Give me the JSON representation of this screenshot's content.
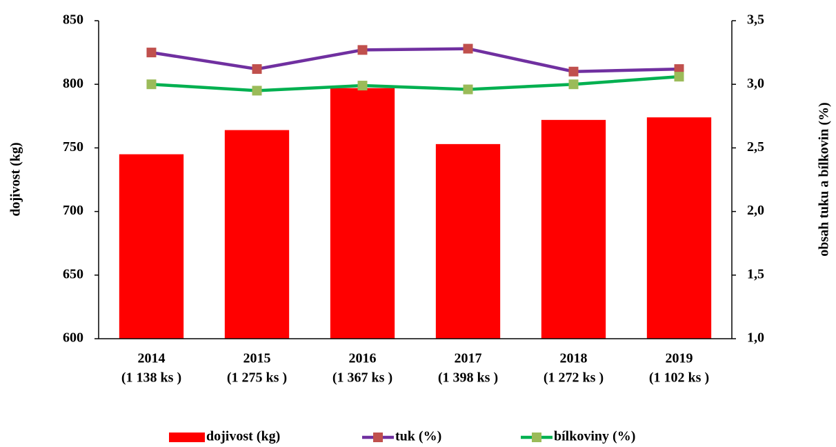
{
  "chart_data": {
    "type": "bar",
    "categories": [
      [
        "2014",
        "(1 138 ks )"
      ],
      [
        "2015",
        "(1 275 ks )"
      ],
      [
        "2016",
        "(1 367 ks )"
      ],
      [
        "2017",
        "(1 398 ks )"
      ],
      [
        "2018",
        "(1 272 ks )"
      ],
      [
        "2019",
        "(1 102 ks )"
      ]
    ],
    "ylabel": "dojivost (kg)",
    "y2label": "obsah tuku a bílkovin (%)",
    "ylim": [
      600,
      850
    ],
    "yticks": [
      600,
      650,
      700,
      750,
      800,
      850
    ],
    "y2lim": [
      1.0,
      3.5
    ],
    "y2ticks": [
      {
        "value": 1.0,
        "label": "1,0"
      },
      {
        "value": 1.5,
        "label": "1,5"
      },
      {
        "value": 2.0,
        "label": "2,0"
      },
      {
        "value": 2.5,
        "label": "2,5"
      },
      {
        "value": 3.0,
        "label": "3,0"
      },
      {
        "value": 3.5,
        "label": "3,5"
      }
    ],
    "series": [
      {
        "name": "dojivost (kg)",
        "type": "bar",
        "color": "#ff0000",
        "values": [
          745,
          764,
          797,
          753,
          772,
          774
        ]
      },
      {
        "name": "tuk (%)",
        "type": "line",
        "axis": "y2",
        "color": "#7030a0",
        "marker_color": "#c0504d",
        "values": [
          3.25,
          3.12,
          3.27,
          3.28,
          3.1,
          3.12
        ]
      },
      {
        "name": "bílkoviny (%)",
        "type": "line",
        "axis": "y2",
        "color": "#00b050",
        "marker_color": "#9bbb59",
        "values": [
          3.0,
          2.95,
          2.99,
          2.96,
          3.0,
          3.06
        ]
      }
    ],
    "legend": "bottom"
  }
}
